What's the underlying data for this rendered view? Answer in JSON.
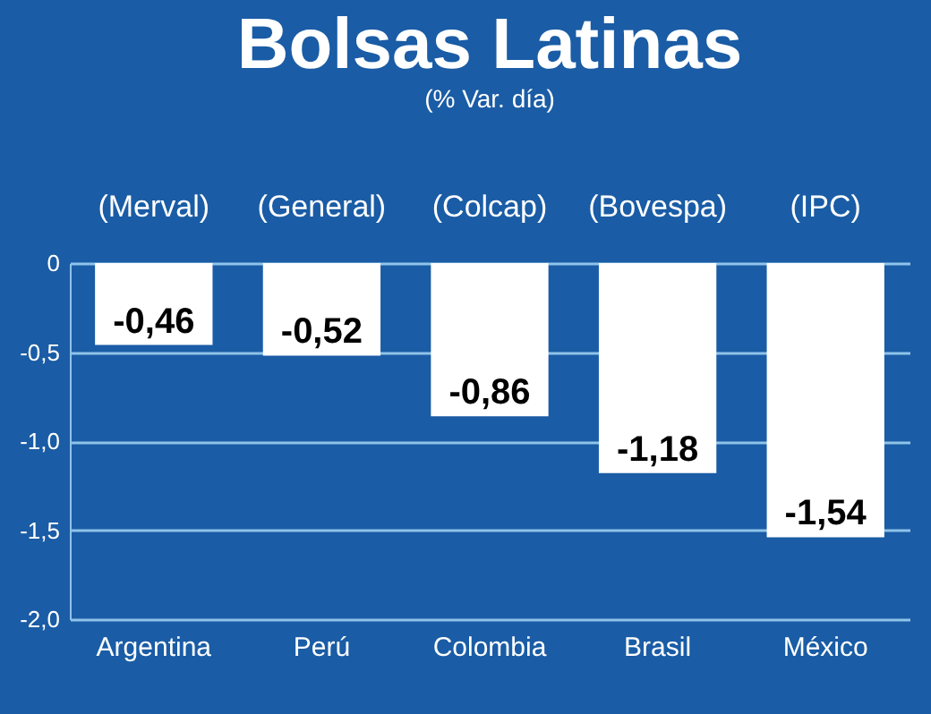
{
  "chart_data": {
    "type": "bar",
    "title": "Bolsas Latinas",
    "subtitle": "(% Var. día)",
    "categories": [
      "Argentina",
      "Perú",
      "Colombia",
      "Brasil",
      "México"
    ],
    "values": [
      -0.46,
      -0.52,
      -0.86,
      -1.18,
      -1.54
    ],
    "value_labels": [
      "-0,46",
      "-0,52",
      "-0,86",
      "-1,18",
      "-1,54"
    ],
    "color": "#ffffff",
    "ylim": [
      -2.0,
      0
    ],
    "yticks": [
      {
        "value": 0,
        "label": "0"
      },
      {
        "value": -0.5,
        "label": "-0,5"
      },
      {
        "value": -1.0,
        "label": "-1,0"
      },
      {
        "value": -1.5,
        "label": "-1,5"
      },
      {
        "value": -2.0,
        "label": "-2,0"
      }
    ],
    "grid": "y",
    "annotations": [
      "(Merval)",
      "(General)",
      "(Colcap)",
      "(Bovespa)",
      "(IPC)"
    ]
  }
}
